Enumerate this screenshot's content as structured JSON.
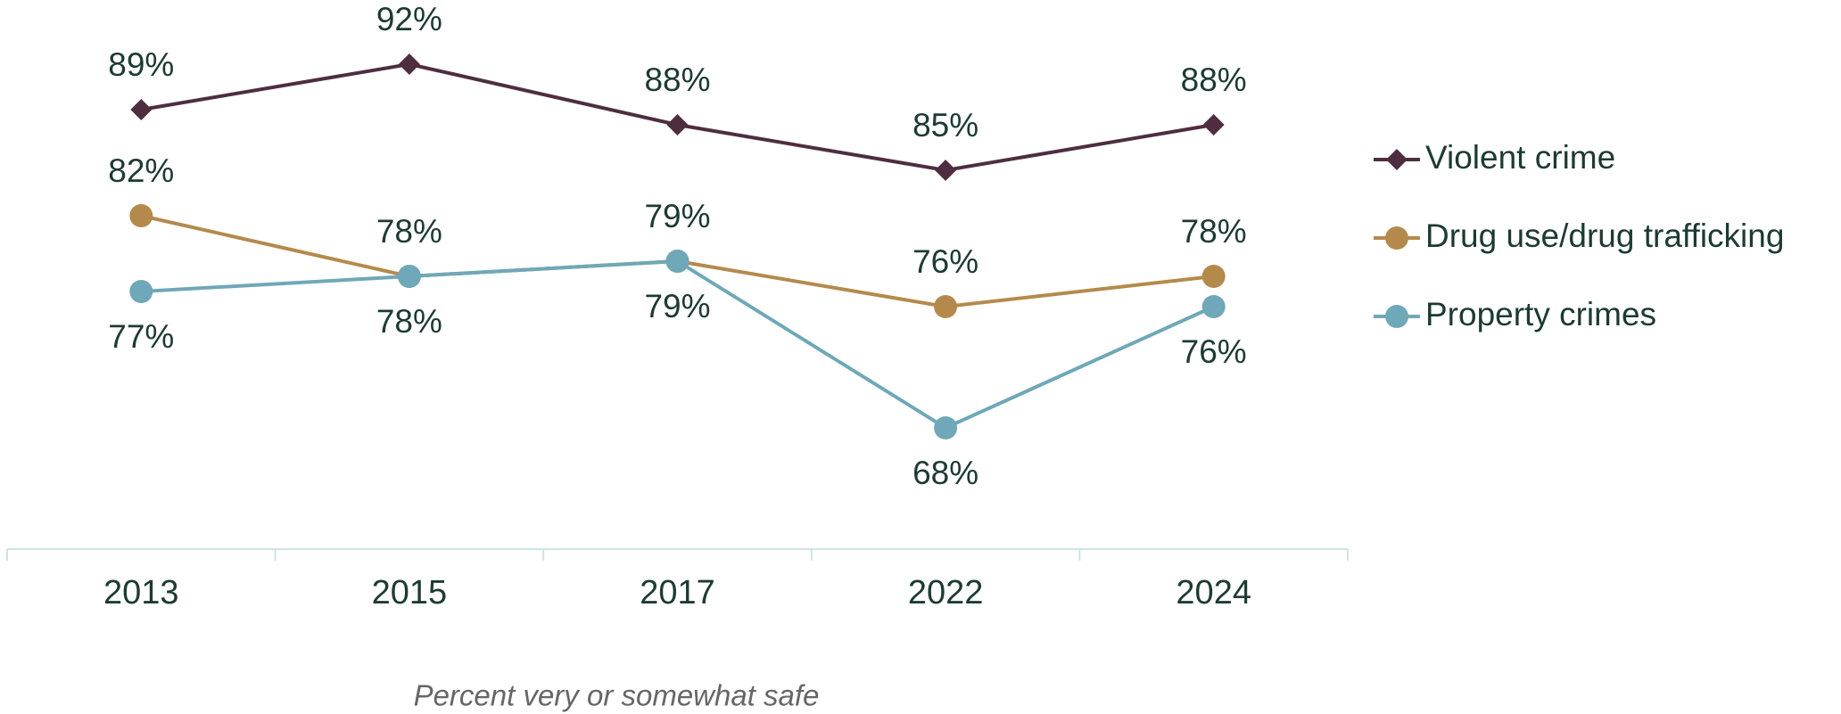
{
  "chart_data": {
    "type": "line",
    "categories": [
      "2013",
      "2015",
      "2017",
      "2022",
      "2024"
    ],
    "series": [
      {
        "name": "Violent crime",
        "color": "#4f2d40",
        "marker": "diamond",
        "label_position": "above",
        "values": [
          89,
          92,
          88,
          85,
          88
        ],
        "value_labels": [
          "89%",
          "92%",
          "88%",
          "85%",
          "88%"
        ]
      },
      {
        "name": "Drug use/drug trafficking",
        "color": "#b48a4c",
        "marker": "circle",
        "label_position": "above",
        "values": [
          82,
          78,
          79,
          76,
          78
        ],
        "value_labels": [
          "82%",
          "78%",
          "79%",
          "76%",
          "78%"
        ]
      },
      {
        "name": "Property crimes",
        "color": "#6fa8b8",
        "marker": "circle",
        "label_position": "below",
        "values": [
          77,
          78,
          79,
          68,
          76
        ],
        "value_labels": [
          "77%",
          "78%",
          "79%",
          "68%",
          "76%"
        ]
      }
    ],
    "legend": "right",
    "caption": "Percent very or somewhat safe"
  }
}
